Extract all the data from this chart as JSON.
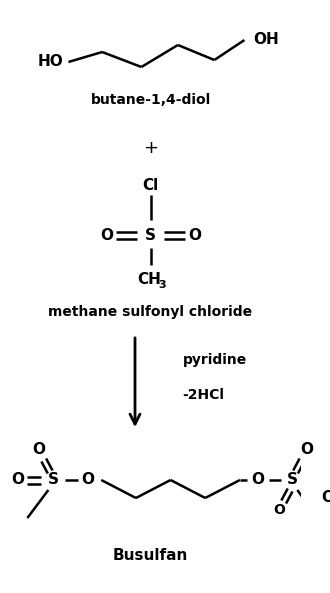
{
  "bg_color": "#ffffff",
  "text_color": "#000000",
  "figsize": [
    3.3,
    5.93
  ],
  "dpi": 100,
  "xlim": [
    0,
    330
  ],
  "ylim": [
    0,
    593
  ]
}
